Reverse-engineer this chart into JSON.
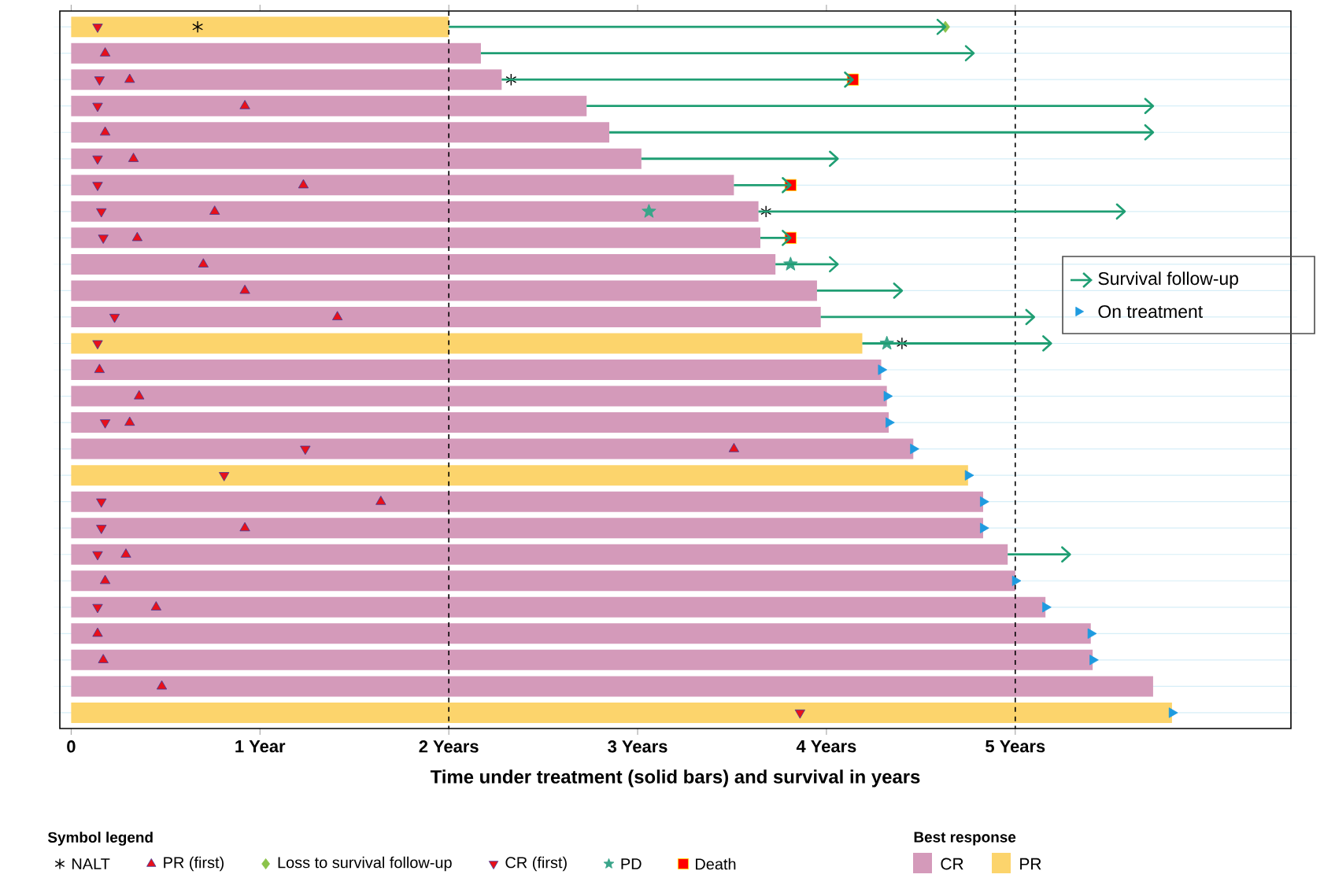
{
  "chart_data": {
    "type": "bar",
    "orientation": "horizontal",
    "xlabel": "Time under treatment (solid bars) and survival in years",
    "legend_title": "Symbol legend",
    "annotations": [
      "Best response"
    ],
    "legend": "right",
    "grid": "y",
    "tick_labels": "x",
    "categories": [
      null,
      null,
      null,
      null,
      null,
      null,
      null,
      null,
      null,
      null,
      null,
      null,
      null,
      null,
      null,
      null,
      null,
      null,
      null,
      null,
      null,
      null,
      null,
      null,
      null,
      null,
      null
    ],
    "xlim": [
      -0.06,
      6.46
    ],
    "xticks": [
      0,
      {
        "value": 1,
        "label": "1 Year"
      },
      {
        "value": 2,
        "label": "2 Years"
      },
      {
        "value": 3,
        "label": "3 Years"
      },
      {
        "value": 4,
        "label": "4 Years"
      },
      {
        "value": 5,
        "label": "5 Years"
      }
    ],
    "ref_lines": [
      {
        "axis": "x",
        "value": 2,
        "line_style": "dashed",
        "color": "#000000"
      },
      {
        "axis": "x",
        "value": 5,
        "line_style": "dashed",
        "color": "#000000"
      }
    ],
    "series": [
      {
        "name": "CR",
        "color": "#d49aba",
        "values": [
          null,
          2.17,
          2.28,
          2.73,
          2.85,
          3.02,
          3.51,
          3.64,
          3.65,
          3.73,
          3.95,
          3.97,
          null,
          4.29,
          4.32,
          4.33,
          4.46,
          null,
          4.83,
          4.83,
          4.96,
          5.0,
          5.16,
          5.4,
          5.41,
          5.73,
          null
        ]
      },
      {
        "name": "PR",
        "color": "#fcd46c",
        "values": [
          2.0,
          null,
          null,
          null,
          null,
          null,
          null,
          null,
          null,
          null,
          null,
          null,
          4.19,
          null,
          null,
          null,
          null,
          4.75,
          null,
          null,
          null,
          null,
          null,
          null,
          null,
          null,
          5.83
        ]
      },
      {
        "name": "Survival follow-up",
        "color": "#1f9e73",
        "base": [
          2.0,
          2.17,
          2.28,
          2.73,
          2.85,
          3.02,
          3.51,
          3.64,
          3.65,
          3.73,
          3.95,
          3.97,
          4.19,
          null,
          null,
          null,
          null,
          null,
          null,
          null,
          4.96,
          null,
          null,
          null,
          null,
          null,
          null
        ],
        "values": [
          2.63,
          2.61,
          1.86,
          3.0,
          2.88,
          1.04,
          0.3,
          1.94,
          0.16,
          0.33,
          0.45,
          1.13,
          1.0,
          null,
          null,
          null,
          null,
          null,
          null,
          null,
          0.33,
          null,
          null,
          null,
          null,
          null,
          null
        ]
      },
      {
        "name": "On treatment",
        "type": "scatter",
        "marker": "triangle-right",
        "color": "#1e9be0",
        "values": [
          null,
          null,
          null,
          null,
          null,
          null,
          null,
          null,
          null,
          null,
          null,
          null,
          null,
          4.29,
          4.32,
          4.33,
          4.46,
          4.75,
          4.83,
          4.83,
          null,
          5.0,
          5.16,
          5.4,
          5.41,
          null,
          5.83
        ]
      },
      {
        "name": "NALT",
        "type": "scatter",
        "marker": "cross",
        "color": "#000000",
        "values": [
          0.67,
          null,
          2.33,
          null,
          null,
          null,
          null,
          3.68,
          null,
          null,
          null,
          null,
          4.4,
          null,
          null,
          null,
          null,
          null,
          null,
          null,
          null,
          null,
          null,
          null,
          null,
          null,
          null
        ]
      },
      {
        "name": "PR (first)",
        "type": "scatter",
        "marker": "triangle",
        "color": "#e8101a",
        "values": [
          null,
          0.18,
          0.31,
          0.92,
          0.18,
          0.33,
          1.23,
          0.76,
          0.35,
          0.7,
          0.92,
          1.41,
          null,
          0.15,
          0.36,
          0.31,
          3.51,
          null,
          1.64,
          0.92,
          0.29,
          0.18,
          0.45,
          0.14,
          0.17,
          0.48,
          null
        ]
      },
      {
        "name": "Loss to survival follow-up",
        "type": "scatter",
        "marker": "diamond",
        "color": "#8bc34a",
        "values": [
          4.63,
          null,
          null,
          null,
          null,
          null,
          null,
          null,
          null,
          null,
          null,
          null,
          null,
          null,
          null,
          null,
          null,
          null,
          null,
          null,
          null,
          null,
          null,
          null,
          null,
          null,
          null
        ]
      },
      {
        "name": "CR (first)",
        "type": "scatter",
        "marker": "triangle-down",
        "color": "#e8101a",
        "values": [
          0.14,
          null,
          0.15,
          0.14,
          null,
          0.14,
          0.14,
          0.16,
          0.17,
          null,
          null,
          0.23,
          0.14,
          null,
          null,
          0.18,
          1.24,
          0.81,
          0.16,
          0.16,
          0.14,
          null,
          0.14,
          null,
          null,
          null,
          3.86
        ]
      },
      {
        "name": "PD",
        "type": "scatter",
        "marker": "star",
        "color": "#3aa58a",
        "values": [
          null,
          null,
          null,
          null,
          null,
          null,
          null,
          3.06,
          null,
          3.81,
          null,
          null,
          4.32,
          null,
          null,
          null,
          null,
          null,
          null,
          null,
          null,
          null,
          null,
          null,
          null,
          null,
          null
        ]
      },
      {
        "name": "Death",
        "type": "scatter",
        "marker": "square",
        "color": "#ff0000",
        "values": [
          null,
          null,
          4.14,
          null,
          null,
          null,
          3.81,
          null,
          3.81,
          null,
          null,
          null,
          null,
          null,
          null,
          null,
          null,
          null,
          null,
          null,
          null,
          null,
          null,
          null,
          null,
          null,
          null
        ]
      }
    ]
  }
}
